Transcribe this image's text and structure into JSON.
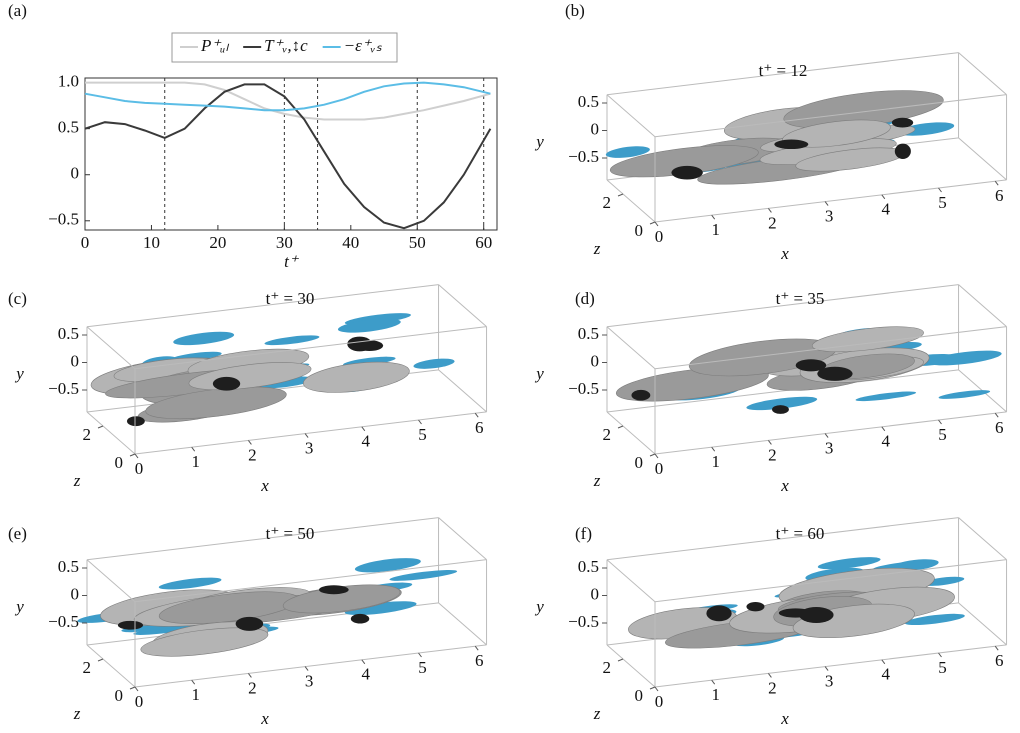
{
  "chart_data": {
    "type": "line",
    "label": "(a)",
    "xlabel": "t⁺",
    "x": [
      0,
      3,
      6,
      9,
      12,
      15,
      18,
      21,
      24,
      27,
      30,
      33,
      36,
      39,
      42,
      45,
      48,
      51,
      54,
      57,
      61
    ],
    "series": [
      {
        "name": "P⁺ᵤₗ",
        "color": "#cfcfcf",
        "values": [
          1.0,
          1.0,
          1.0,
          1.0,
          1.0,
          1.0,
          0.98,
          0.92,
          0.82,
          0.72,
          0.66,
          0.62,
          0.6,
          0.6,
          0.6,
          0.62,
          0.66,
          0.7,
          0.75,
          0.8,
          0.88
        ]
      },
      {
        "name": "T⁺ᵥ,↕c",
        "color": "#3a3a3a",
        "values": [
          0.5,
          0.57,
          0.55,
          0.48,
          0.4,
          0.5,
          0.72,
          0.9,
          0.98,
          0.98,
          0.85,
          0.6,
          0.25,
          -0.1,
          -0.35,
          -0.52,
          -0.58,
          -0.5,
          -0.3,
          0.0,
          0.5
        ]
      },
      {
        "name": "−ε⁺ᵥₛ",
        "color": "#5bbde6",
        "values": [
          0.88,
          0.84,
          0.8,
          0.78,
          0.77,
          0.76,
          0.75,
          0.74,
          0.72,
          0.7,
          0.7,
          0.72,
          0.76,
          0.82,
          0.9,
          0.96,
          0.99,
          1.0,
          0.98,
          0.95,
          0.88
        ]
      }
    ],
    "vlines": [
      12,
      30,
      35,
      50,
      60
    ],
    "xlim": [
      0,
      62
    ],
    "xticks": [
      0,
      10,
      20,
      30,
      40,
      50,
      60
    ],
    "ylim": [
      -0.6,
      1.05
    ],
    "yticks": [
      {
        "value": -0.5,
        "label": "−0.5"
      },
      0,
      0.5,
      {
        "value": 1,
        "label": "1.0"
      }
    ],
    "legend": "top"
  },
  "panels": [
    {
      "label": "(b)",
      "title": "t⁺ = 12",
      "xlabel": "x",
      "ylabel": "y",
      "zlabel": "z",
      "xticks": [
        0,
        1,
        2,
        3,
        4,
        5,
        6
      ],
      "yticks": [
        0.5,
        0,
        {
          "value": -0.5,
          "label": "−0.5"
        }
      ],
      "zticks": [
        2,
        0
      ]
    },
    {
      "label": "(c)",
      "title": "t⁺ = 30",
      "xlabel": "x",
      "ylabel": "y",
      "zlabel": "z",
      "xticks": [
        0,
        1,
        2,
        3,
        4,
        5,
        6
      ],
      "yticks": [
        0.5,
        0,
        {
          "value": -0.5,
          "label": "−0.5"
        }
      ],
      "zticks": [
        2,
        0
      ]
    },
    {
      "label": "(d)",
      "title": "t⁺ = 35",
      "xlabel": "x",
      "ylabel": "y",
      "zlabel": "z",
      "xticks": [
        0,
        1,
        2,
        3,
        4,
        5,
        6
      ],
      "yticks": [
        0.5,
        0,
        {
          "value": -0.5,
          "label": "−0.5"
        }
      ],
      "zticks": [
        2,
        0
      ]
    },
    {
      "label": "(e)",
      "title": "t⁺ = 50",
      "xlabel": "x",
      "ylabel": "y",
      "zlabel": "z",
      "xticks": [
        0,
        1,
        2,
        3,
        4,
        5,
        6
      ],
      "yticks": [
        0.5,
        0,
        {
          "value": -0.5,
          "label": "−0.5"
        }
      ],
      "zticks": [
        2,
        0
      ]
    },
    {
      "label": "(f)",
      "title": "t⁺ = 60",
      "xlabel": "x",
      "ylabel": "y",
      "zlabel": "z",
      "xticks": [
        0,
        1,
        2,
        3,
        4,
        5,
        6
      ],
      "yticks": [
        0.5,
        0,
        {
          "value": -0.5,
          "label": "−0.5"
        }
      ],
      "zticks": [
        2,
        0
      ]
    }
  ]
}
